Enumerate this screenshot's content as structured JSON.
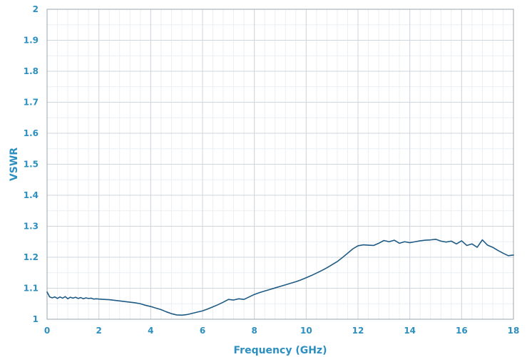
{
  "chart_data": {
    "type": "line",
    "title": "",
    "xlabel": "Frequency (GHz)",
    "ylabel": "VSWR",
    "xlim": [
      0,
      18
    ],
    "ylim": [
      1,
      2
    ],
    "x_ticks": [
      0,
      2,
      4,
      6,
      8,
      10,
      12,
      14,
      16,
      18
    ],
    "y_ticks": [
      1,
      1.1,
      1.2,
      1.3,
      1.4,
      1.5,
      1.6,
      1.7,
      1.8,
      1.9,
      2
    ],
    "x_tick_labels": [
      "0",
      "2",
      "4",
      "6",
      "8",
      "10",
      "12",
      "14",
      "16",
      "18"
    ],
    "y_tick_labels": [
      "1",
      "1.1",
      "1.2",
      "1.3",
      "1.4",
      "1.5",
      "1.6",
      "1.7",
      "1.8",
      "1.9",
      "2"
    ],
    "grid": true,
    "minor_grid": true,
    "legend": "none",
    "colors": {
      "line": "#1f5b85",
      "axis_text": "#2c8fc0",
      "major_grid": "#cfd6dc",
      "minor_grid": "#eceff2",
      "frame": "#9aa5ae"
    },
    "series": [
      {
        "values": [
          [
            0.0,
            1.088
          ],
          [
            0.1,
            1.072
          ],
          [
            0.2,
            1.069
          ],
          [
            0.3,
            1.072
          ],
          [
            0.4,
            1.067
          ],
          [
            0.5,
            1.072
          ],
          [
            0.6,
            1.068
          ],
          [
            0.7,
            1.073
          ],
          [
            0.8,
            1.066
          ],
          [
            0.9,
            1.071
          ],
          [
            1.0,
            1.068
          ],
          [
            1.1,
            1.071
          ],
          [
            1.2,
            1.067
          ],
          [
            1.3,
            1.07
          ],
          [
            1.4,
            1.066
          ],
          [
            1.5,
            1.069
          ],
          [
            1.6,
            1.067
          ],
          [
            1.7,
            1.068
          ],
          [
            1.8,
            1.065
          ],
          [
            1.9,
            1.066
          ],
          [
            2.0,
            1.065
          ],
          [
            2.2,
            1.064
          ],
          [
            2.4,
            1.063
          ],
          [
            2.6,
            1.061
          ],
          [
            2.8,
            1.059
          ],
          [
            3.0,
            1.057
          ],
          [
            3.2,
            1.055
          ],
          [
            3.4,
            1.053
          ],
          [
            3.6,
            1.05
          ],
          [
            3.8,
            1.045
          ],
          [
            4.0,
            1.041
          ],
          [
            4.2,
            1.036
          ],
          [
            4.4,
            1.031
          ],
          [
            4.6,
            1.024
          ],
          [
            4.8,
            1.018
          ],
          [
            5.0,
            1.014
          ],
          [
            5.2,
            1.013
          ],
          [
            5.4,
            1.015
          ],
          [
            5.6,
            1.019
          ],
          [
            5.8,
            1.023
          ],
          [
            6.0,
            1.027
          ],
          [
            6.2,
            1.033
          ],
          [
            6.4,
            1.04
          ],
          [
            6.6,
            1.047
          ],
          [
            6.8,
            1.055
          ],
          [
            7.0,
            1.064
          ],
          [
            7.2,
            1.062
          ],
          [
            7.4,
            1.066
          ],
          [
            7.6,
            1.064
          ],
          [
            7.8,
            1.072
          ],
          [
            8.0,
            1.08
          ],
          [
            8.2,
            1.086
          ],
          [
            8.4,
            1.091
          ],
          [
            8.6,
            1.096
          ],
          [
            8.8,
            1.101
          ],
          [
            9.0,
            1.106
          ],
          [
            9.2,
            1.111
          ],
          [
            9.4,
            1.116
          ],
          [
            9.6,
            1.121
          ],
          [
            9.8,
            1.127
          ],
          [
            10.0,
            1.134
          ],
          [
            10.2,
            1.141
          ],
          [
            10.4,
            1.149
          ],
          [
            10.6,
            1.157
          ],
          [
            10.8,
            1.166
          ],
          [
            11.0,
            1.176
          ],
          [
            11.2,
            1.186
          ],
          [
            11.4,
            1.199
          ],
          [
            11.6,
            1.213
          ],
          [
            11.8,
            1.227
          ],
          [
            12.0,
            1.237
          ],
          [
            12.2,
            1.24
          ],
          [
            12.4,
            1.239
          ],
          [
            12.6,
            1.238
          ],
          [
            12.8,
            1.245
          ],
          [
            13.0,
            1.254
          ],
          [
            13.2,
            1.25
          ],
          [
            13.4,
            1.255
          ],
          [
            13.6,
            1.245
          ],
          [
            13.8,
            1.25
          ],
          [
            14.0,
            1.247
          ],
          [
            14.2,
            1.25
          ],
          [
            14.4,
            1.253
          ],
          [
            14.6,
            1.255
          ],
          [
            14.8,
            1.256
          ],
          [
            15.0,
            1.258
          ],
          [
            15.2,
            1.252
          ],
          [
            15.4,
            1.249
          ],
          [
            15.6,
            1.252
          ],
          [
            15.8,
            1.243
          ],
          [
            16.0,
            1.253
          ],
          [
            16.2,
            1.238
          ],
          [
            16.4,
            1.243
          ],
          [
            16.6,
            1.232
          ],
          [
            16.8,
            1.256
          ],
          [
            17.0,
            1.239
          ],
          [
            17.2,
            1.232
          ],
          [
            17.4,
            1.222
          ],
          [
            17.6,
            1.213
          ],
          [
            17.8,
            1.205
          ],
          [
            18.0,
            1.207
          ]
        ]
      }
    ]
  }
}
